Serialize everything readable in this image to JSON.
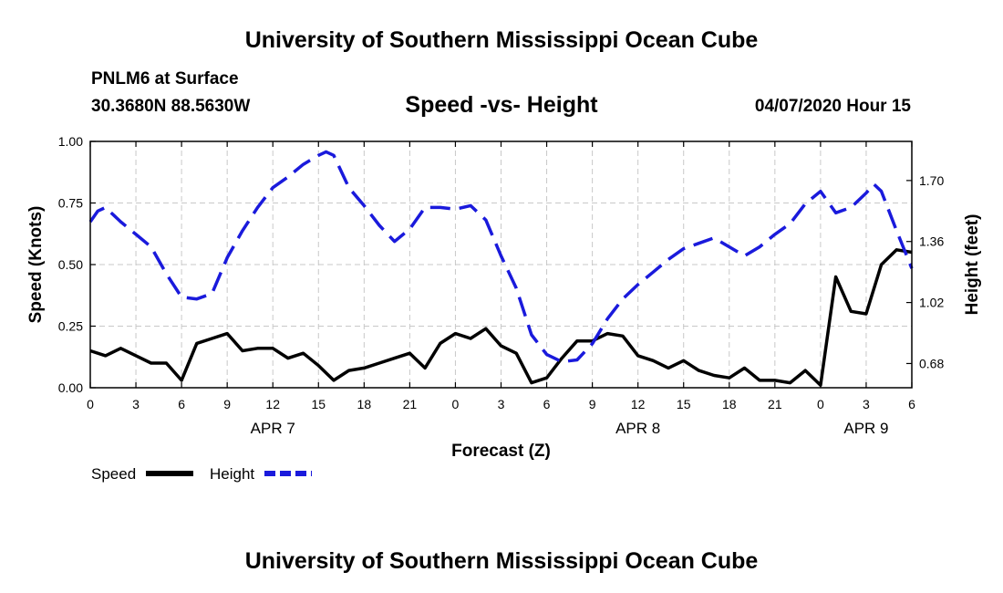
{
  "header": {
    "title": "University of Southern Mississippi Ocean Cube",
    "station": "PNLM6 at Surface",
    "coords": "30.3680N 88.5630W",
    "chart_title": "Speed -vs- Height",
    "date": "04/07/2020 Hour 15"
  },
  "footer": {
    "title": "University of Southern Mississippi Ocean Cube"
  },
  "colors": {
    "speed": "#000000",
    "height": "#1a1adc",
    "grid": "#c8c8c8"
  },
  "chart_data": {
    "type": "line",
    "title": "Speed -vs- Height",
    "xlabel": "Forecast (Z)",
    "ylabel": "Speed (Knots)",
    "y2label": "Height (feet)",
    "grid": true,
    "xlim": [
      0,
      54
    ],
    "ylim": [
      0,
      1
    ],
    "y2lim": [
      0.545,
      1.918
    ],
    "x_ticks": [
      0,
      3,
      6,
      9,
      12,
      15,
      18,
      21,
      24,
      27,
      30,
      33,
      36,
      39,
      42,
      45,
      48,
      51,
      54
    ],
    "x_tick_labels": [
      "0",
      "3",
      "6",
      "9",
      "12",
      "15",
      "18",
      "21",
      "0",
      "3",
      "6",
      "9",
      "12",
      "15",
      "18",
      "21",
      "0",
      "3",
      "6"
    ],
    "y_ticks": [
      0,
      0.25,
      0.5,
      0.75,
      1
    ],
    "y_tick_labels": [
      "0.00",
      "0.25",
      "0.50",
      "0.75",
      "1.00"
    ],
    "y2_ticks": [
      0.68,
      1.02,
      1.36,
      1.7
    ],
    "y2_tick_labels": [
      "0.68",
      "1.02",
      "1.36",
      "1.70"
    ],
    "day_labels": [
      {
        "x": 12,
        "label": "APR 7"
      },
      {
        "x": 36,
        "label": "APR 8"
      },
      {
        "x": 51,
        "label": "APR 9"
      }
    ],
    "legend": [
      {
        "name": "Speed",
        "style": "solid"
      },
      {
        "name": "Height",
        "style": "dashed"
      }
    ],
    "legend_position": "bottom-left",
    "series": [
      {
        "name": "Speed",
        "axis": "left",
        "style": "solid",
        "x": [
          0,
          1,
          2,
          3,
          4,
          5,
          6,
          7,
          8,
          9,
          10,
          11,
          12,
          13,
          14,
          15,
          16,
          17,
          18,
          19,
          20,
          21,
          22,
          23,
          24,
          25,
          26,
          27,
          28,
          29,
          30,
          31,
          32,
          33,
          34,
          35,
          36,
          37,
          38,
          39,
          40,
          41,
          42,
          43,
          44,
          45,
          46,
          47,
          48,
          49,
          50,
          51,
          52,
          53,
          54
        ],
        "values": [
          0.15,
          0.13,
          0.16,
          0.13,
          0.1,
          0.1,
          0.03,
          0.18,
          0.2,
          0.22,
          0.15,
          0.16,
          0.16,
          0.12,
          0.14,
          0.09,
          0.03,
          0.07,
          0.08,
          0.1,
          0.12,
          0.14,
          0.08,
          0.18,
          0.22,
          0.2,
          0.24,
          0.17,
          0.14,
          0.02,
          0.04,
          0.12,
          0.19,
          0.19,
          0.22,
          0.21,
          0.13,
          0.11,
          0.08,
          0.11,
          0.07,
          0.05,
          0.04,
          0.08,
          0.03,
          0.03,
          0.02,
          0.07,
          0.01,
          0.45,
          0.31,
          0.3,
          0.5,
          0.56,
          0.55
        ]
      },
      {
        "name": "Height",
        "axis": "right",
        "style": "dashed",
        "x": [
          0,
          0.5,
          1,
          2,
          3,
          4,
          5,
          6,
          7,
          8,
          9,
          10,
          11,
          12,
          13,
          14,
          15,
          15.5,
          16,
          17,
          18,
          19,
          20,
          21,
          22,
          23,
          24,
          25,
          26,
          27,
          28,
          29,
          30,
          31,
          32,
          33,
          34,
          35,
          36,
          37,
          38,
          39,
          40,
          41,
          42,
          43,
          44,
          45,
          46,
          47,
          48,
          49,
          50,
          51,
          51.5,
          52,
          53,
          54
        ],
        "values": [
          1.47,
          1.53,
          1.55,
          1.47,
          1.4,
          1.33,
          1.18,
          1.05,
          1.04,
          1.07,
          1.27,
          1.42,
          1.55,
          1.66,
          1.72,
          1.79,
          1.84,
          1.86,
          1.84,
          1.66,
          1.56,
          1.45,
          1.36,
          1.43,
          1.55,
          1.55,
          1.54,
          1.56,
          1.48,
          1.28,
          1.1,
          0.84,
          0.73,
          0.69,
          0.7,
          0.79,
          0.93,
          1.04,
          1.12,
          1.19,
          1.26,
          1.32,
          1.35,
          1.38,
          1.33,
          1.28,
          1.33,
          1.4,
          1.46,
          1.57,
          1.64,
          1.52,
          1.55,
          1.63,
          1.68,
          1.64,
          1.42,
          1.21
        ]
      }
    ]
  }
}
